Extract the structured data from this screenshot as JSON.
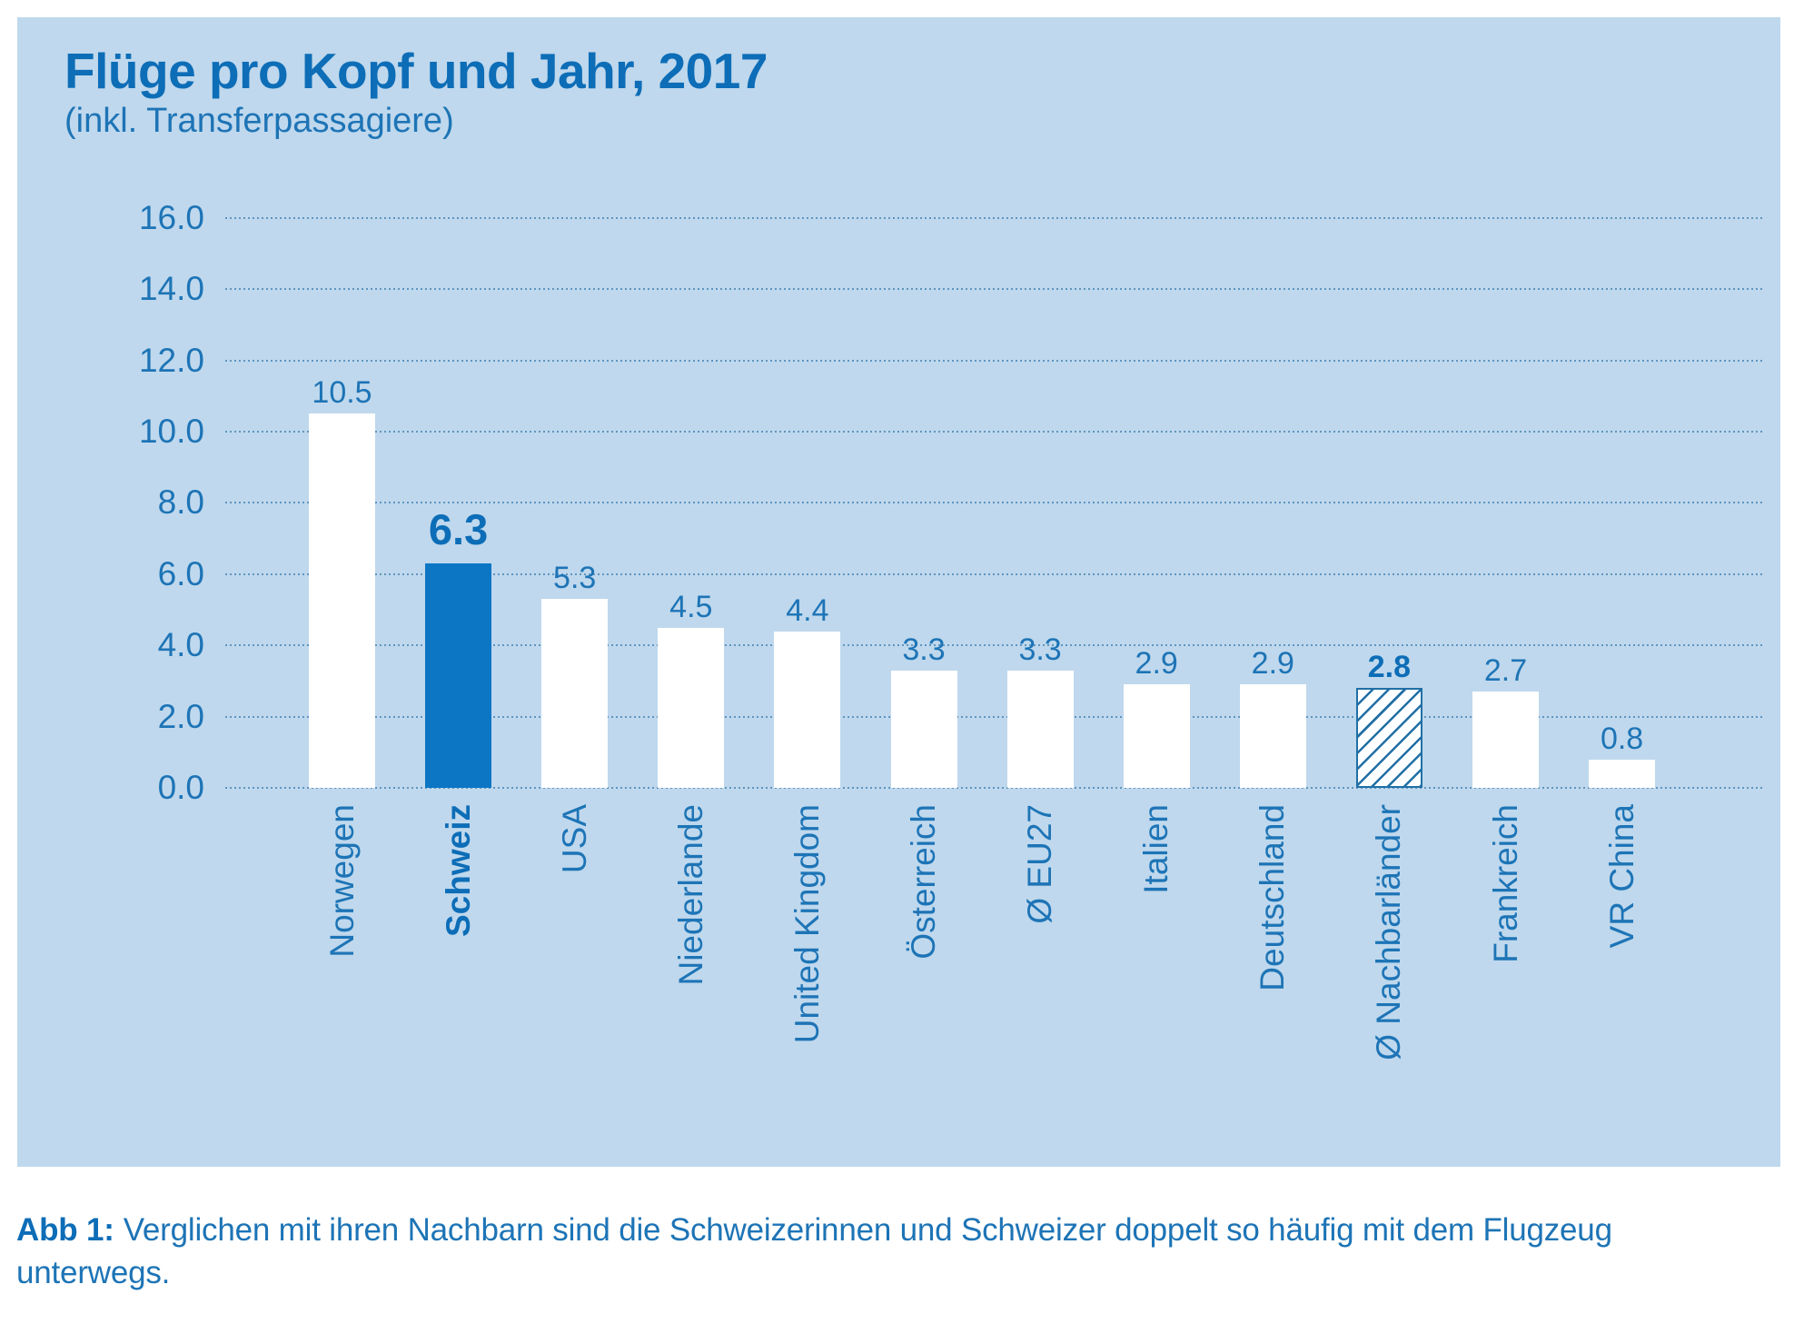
{
  "figure": {
    "title": "Flüge pro Kopf und Jahr, 2017",
    "subtitle": "(inkl. Transferpassagiere)"
  },
  "caption": {
    "prefix": "Abb 1:",
    "text": "Verglichen mit ihren Nachbarn sind die Schweizerinnen und Schweizer doppelt so häufig mit dem Flugzeug unterwegs."
  },
  "colors": {
    "panel_bg": "#bfd8ed",
    "bar_white": "#ffffff",
    "bar_highlight": "#0c76c4",
    "hatch_stroke": "#216fa6",
    "text_blue": "#1d74b6",
    "strong_blue": "#0d6db7",
    "gridline": "rgba(31,104,163,0.6)"
  },
  "chart_data": {
    "type": "bar",
    "title": "Flüge pro Kopf und Jahr, 2017",
    "subtitle": "(inkl. Transferpassagiere)",
    "ylim": [
      0,
      16
    ],
    "ytick_step": 2,
    "ytick_labels": [
      "0.0",
      "2.0",
      "4.0",
      "6.0",
      "8.0",
      "10.0",
      "12.0",
      "14.0",
      "16.0"
    ],
    "grid": "horizontal-dotted",
    "legend": "none",
    "categories": [
      "Norwegen",
      "Schweiz",
      "USA",
      "Niederlande",
      "United Kingdom",
      "Österreich",
      "Ø EU27",
      "Italien",
      "Deutschland",
      "Ø Nachbarländer",
      "Frankreich",
      "VR China"
    ],
    "values": [
      10.5,
      6.3,
      5.3,
      4.5,
      4.4,
      3.3,
      3.3,
      2.9,
      2.9,
      2.8,
      2.7,
      0.8
    ],
    "bars": [
      {
        "id": "norwegen",
        "label": "Norwegen",
        "value": 10.5,
        "display_value": "10.5",
        "style": "white",
        "value_bold": false,
        "value_large": false,
        "label_bold": false
      },
      {
        "id": "schweiz",
        "label": "Schweiz",
        "value": 6.3,
        "display_value": "6.3",
        "style": "highlight",
        "value_bold": true,
        "value_large": true,
        "label_bold": true
      },
      {
        "id": "usa",
        "label": "USA",
        "value": 5.3,
        "display_value": "5.3",
        "style": "white",
        "value_bold": false,
        "value_large": false,
        "label_bold": false
      },
      {
        "id": "niederlande",
        "label": "Niederlande",
        "value": 4.5,
        "display_value": "4.5",
        "style": "white",
        "value_bold": false,
        "value_large": false,
        "label_bold": false
      },
      {
        "id": "united-kingdom",
        "label": "United Kingdom",
        "value": 4.4,
        "display_value": "4.4",
        "style": "white",
        "value_bold": false,
        "value_large": false,
        "label_bold": false
      },
      {
        "id": "oesterreich",
        "label": "Österreich",
        "value": 3.3,
        "display_value": "3.3",
        "style": "white",
        "value_bold": false,
        "value_large": false,
        "label_bold": false
      },
      {
        "id": "eu27-durchschnitt",
        "label": "Ø EU27",
        "value": 3.3,
        "display_value": "3.3",
        "style": "white",
        "value_bold": false,
        "value_large": false,
        "label_bold": false
      },
      {
        "id": "italien",
        "label": "Italien",
        "value": 2.9,
        "display_value": "2.9",
        "style": "white",
        "value_bold": false,
        "value_large": false,
        "label_bold": false
      },
      {
        "id": "deutschland",
        "label": "Deutschland",
        "value": 2.9,
        "display_value": "2.9",
        "style": "white",
        "value_bold": false,
        "value_large": false,
        "label_bold": false
      },
      {
        "id": "nachbarlaender-durchschnitt",
        "label": "Ø Nachbarländer",
        "value": 2.8,
        "display_value": "2.8",
        "style": "hatched",
        "value_bold": true,
        "value_large": false,
        "label_bold": false
      },
      {
        "id": "frankreich",
        "label": "Frankreich",
        "value": 2.7,
        "display_value": "2.7",
        "style": "white",
        "value_bold": false,
        "value_large": false,
        "label_bold": false
      },
      {
        "id": "vr-china",
        "label": "VR China",
        "value": 0.8,
        "display_value": "0.8",
        "style": "white",
        "value_bold": false,
        "value_large": false,
        "label_bold": false
      }
    ]
  }
}
